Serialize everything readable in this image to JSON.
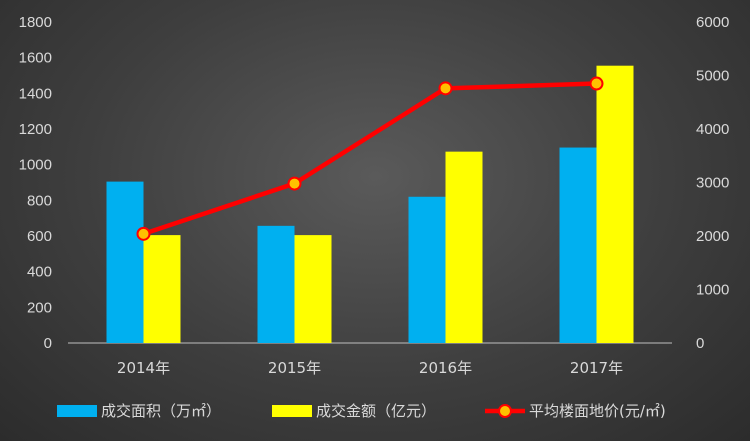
{
  "chart_data": {
    "type": "bar",
    "categories": [
      "2014年",
      "2015年",
      "2016年",
      "2017年"
    ],
    "series": [
      {
        "name": "成交面积（万㎡）",
        "type": "bar",
        "axis": "left",
        "color": "#00b0f0",
        "values": [
          905,
          657,
          820,
          1096
        ]
      },
      {
        "name": "成交金额（亿元）",
        "type": "bar",
        "axis": "left",
        "color": "#ffff00",
        "values": [
          605,
          605,
          1073,
          1555
        ]
      },
      {
        "name": "平均楼面地价(元/㎡)",
        "type": "line",
        "axis": "right",
        "color": "#ff0000",
        "marker_fill": "#ffc000",
        "values": [
          2040,
          2980,
          4760,
          4850
        ]
      }
    ],
    "y_left": {
      "min": 0,
      "max": 1800,
      "step": 200
    },
    "y_right": {
      "min": 0,
      "max": 6000,
      "step": 1000
    },
    "grid": false,
    "legend_position": "bottom"
  }
}
